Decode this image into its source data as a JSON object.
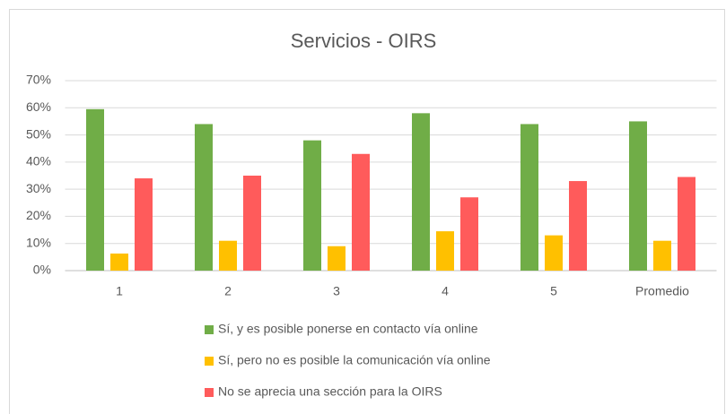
{
  "chart_data": {
    "type": "bar",
    "title": "Servicios - OIRS",
    "categories": [
      "1",
      "2",
      "3",
      "4",
      "5",
      "Promedio"
    ],
    "series": [
      {
        "name": "Sí, y es posible ponerse en contacto vía online",
        "color": "#70ad47",
        "values": [
          59.5,
          54,
          48,
          58,
          54,
          55
        ]
      },
      {
        "name": "Sí, pero no es posible la comunicación vía online",
        "color": "#ffc000",
        "values": [
          6.3,
          11,
          9,
          14.5,
          13,
          11
        ]
      },
      {
        "name": "No se aprecia una sección para la OIRS",
        "color": "#ff5b5b",
        "values": [
          34,
          35,
          43,
          27,
          33,
          34.5
        ]
      }
    ],
    "ylim": [
      0,
      70
    ],
    "yticks": [
      {
        "value": 0,
        "label": "0%"
      },
      {
        "value": 10,
        "label": "10%"
      },
      {
        "value": 20,
        "label": "20%"
      },
      {
        "value": 30,
        "label": "30%"
      },
      {
        "value": 40,
        "label": "40%"
      },
      {
        "value": 50,
        "label": "50%"
      },
      {
        "value": 60,
        "label": "60%"
      },
      {
        "value": 70,
        "label": "70%"
      }
    ],
    "grid": true,
    "legend": "bottom"
  }
}
